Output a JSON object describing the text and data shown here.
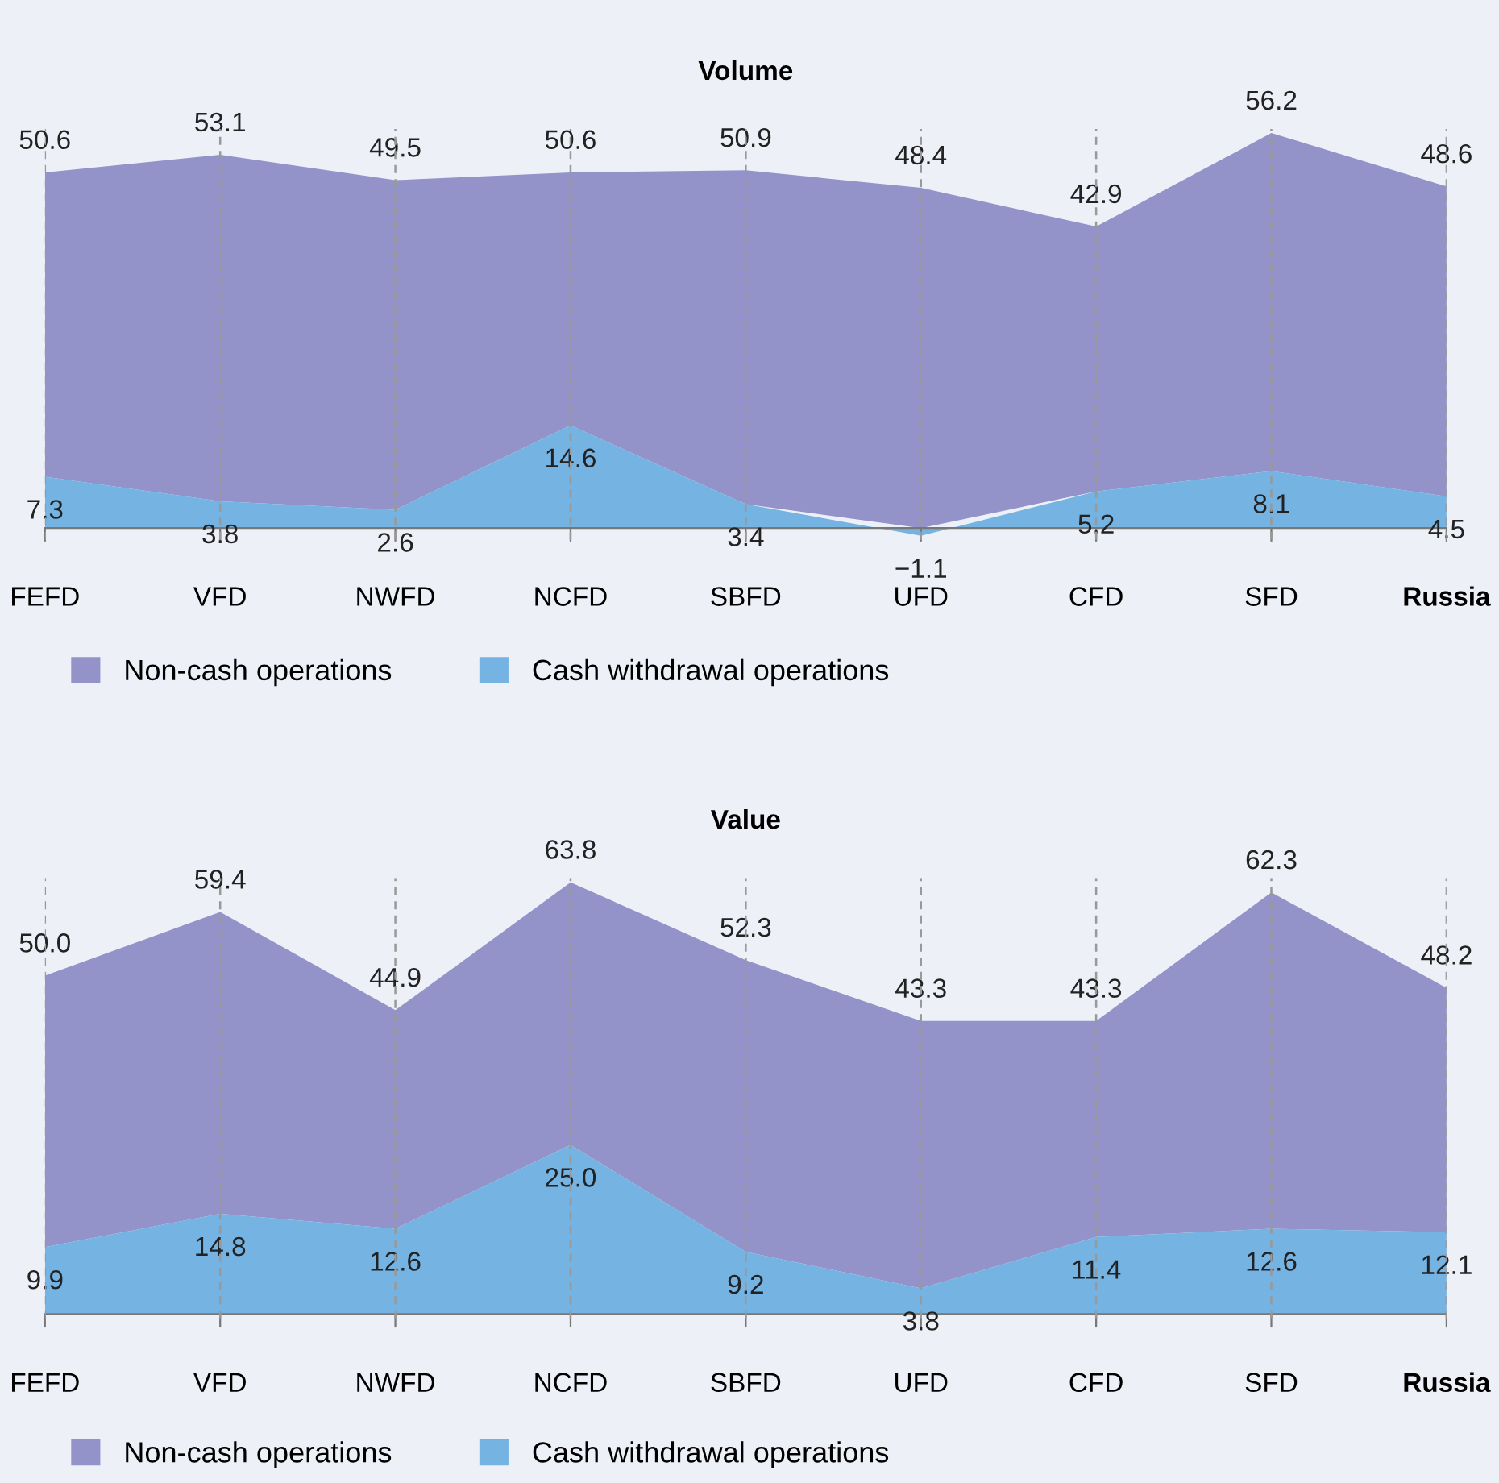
{
  "chart_data": [
    {
      "type": "area",
      "title": "Volume",
      "categories": [
        "FEFD",
        "VFD",
        "NWFD",
        "NCFD",
        "SBFD",
        "UFD",
        "CFD",
        "SFD",
        "Russia"
      ],
      "series": [
        {
          "name": "Non-cash operations",
          "color": "#9393c9",
          "values": [
            50.6,
            53.1,
            49.5,
            50.6,
            50.9,
            48.4,
            42.9,
            56.2,
            48.6
          ],
          "value_labels": [
            "50.6",
            "53.1",
            "49.5",
            "50.6",
            "50.9",
            "48.4",
            "42.9",
            "56.2",
            "48.6"
          ]
        },
        {
          "name": "Cash withdrawal operations",
          "color": "#74b3e2",
          "values": [
            7.3,
            3.8,
            2.6,
            14.6,
            3.4,
            -1.1,
            5.2,
            8.1,
            4.5
          ],
          "value_labels": [
            "7.3",
            "3.8",
            "2.6",
            "14.6",
            "3.4",
            "−1.1",
            "5.2",
            "8.1",
            "4.5"
          ]
        }
      ],
      "grid": "x",
      "legend": "bottom left"
    },
    {
      "type": "area",
      "title": "Value",
      "categories": [
        "FEFD",
        "VFD",
        "NWFD",
        "NCFD",
        "SBFD",
        "UFD",
        "CFD",
        "SFD",
        "Russia"
      ],
      "series": [
        {
          "name": "Non-cash operations",
          "color": "#9393c9",
          "values": [
            50.0,
            59.4,
            44.9,
            63.8,
            52.3,
            43.3,
            43.3,
            62.3,
            48.2
          ],
          "value_labels": [
            "50.0",
            "59.4",
            "44.9",
            "63.8",
            "52.3",
            "43.3",
            "43.3",
            "62.3",
            "48.2"
          ]
        },
        {
          "name": "Cash withdrawal operations",
          "color": "#74b3e2",
          "values": [
            9.9,
            14.8,
            12.6,
            25.0,
            9.2,
            3.8,
            11.4,
            12.6,
            12.1
          ],
          "value_labels": [
            "9.9",
            "14.8",
            "12.6",
            "25.0",
            "9.2",
            "3.8",
            "11.4",
            "12.6",
            "12.1"
          ]
        }
      ],
      "grid": "x",
      "legend": "bottom left"
    }
  ]
}
